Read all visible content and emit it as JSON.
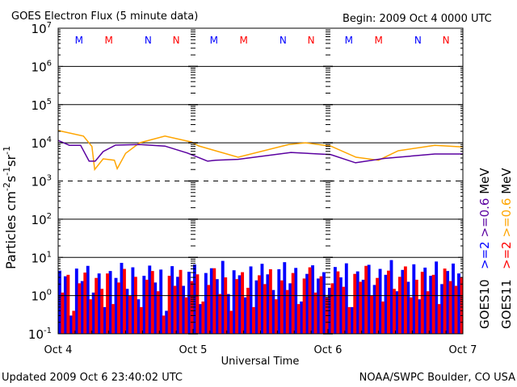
{
  "chart_data": {
    "type": "line",
    "title": "GOES Electron Flux (5 minute data)",
    "begin_label": "Begin: 2009 Oct 4 0000 UTC",
    "xlabel": "Universal Time",
    "ylabel": "Particles cm",
    "ylabel_parts": [
      "Particles cm",
      "-2",
      "s",
      "-1",
      "sr",
      "-1"
    ],
    "y_scale": "log",
    "ylim_exponents": [
      -1,
      7
    ],
    "y_tick_exponents": [
      7,
      6,
      5,
      4,
      3,
      2,
      1,
      0,
      -1
    ],
    "xlim_hours": [
      0,
      72
    ],
    "x_ticks": [
      {
        "hour": 0,
        "label": "Oct 4"
      },
      {
        "hour": 24,
        "label": "Oct 5"
      },
      {
        "hour": 48,
        "label": "Oct 6"
      },
      {
        "hour": 72,
        "label": "Oct 7"
      }
    ],
    "threshold_lines": [
      {
        "exponent": 6,
        "style": "solid"
      },
      {
        "exponent": 5,
        "style": "solid"
      },
      {
        "exponent": 4,
        "style": "solid"
      },
      {
        "exponent": 3,
        "style": "dashed"
      },
      {
        "exponent": 2,
        "style": "solid"
      },
      {
        "exponent": 1,
        "style": "solid"
      },
      {
        "exponent": 0,
        "style": "solid"
      }
    ],
    "markers": [
      {
        "day": 0,
        "hour": 3.7,
        "letter": "M",
        "color": "#0000ff"
      },
      {
        "day": 0,
        "hour": 9,
        "letter": "M",
        "color": "#ff0000"
      },
      {
        "day": 0,
        "hour": 16,
        "letter": "N",
        "color": "#0000ff"
      },
      {
        "day": 0,
        "hour": 21,
        "letter": "N",
        "color": "#ff0000"
      },
      {
        "day": 1,
        "hour": 3.7,
        "letter": "M",
        "color": "#0000ff"
      },
      {
        "day": 1,
        "hour": 9,
        "letter": "M",
        "color": "#ff0000"
      },
      {
        "day": 1,
        "hour": 16,
        "letter": "N",
        "color": "#0000ff"
      },
      {
        "day": 1,
        "hour": 21,
        "letter": "N",
        "color": "#ff0000"
      },
      {
        "day": 2,
        "hour": 3.7,
        "letter": "M",
        "color": "#0000ff"
      },
      {
        "day": 2,
        "hour": 9,
        "letter": "M",
        "color": "#ff0000"
      },
      {
        "day": 2,
        "hour": 16,
        "letter": "N",
        "color": "#0000ff"
      },
      {
        "day": 2,
        "hour": 21,
        "letter": "N",
        "color": "#ff0000"
      }
    ],
    "series": [
      {
        "name": "GOES11 >=0.6 MeV",
        "color": "#ffa500",
        "kind": "line",
        "hours": [
          0,
          4.5,
          6,
          6.5,
          8,
          10,
          10.5,
          12,
          14.5,
          19,
          23.7,
          25,
          32,
          41,
          44,
          48.5,
          53,
          57,
          60.5,
          67,
          72
        ],
        "values": [
          21000,
          15000,
          8000,
          2000,
          3800,
          3500,
          2100,
          5300,
          10000,
          15000,
          10500,
          8300,
          4200,
          9000,
          10000,
          8200,
          4200,
          3500,
          6200,
          8600,
          7800
        ]
      },
      {
        "name": "GOES10 >=0.6 MeV",
        "color": "#5a00a0",
        "kind": "line",
        "hours": [
          0,
          2,
          4,
          5.5,
          6.6,
          8,
          10.2,
          14.5,
          19,
          23,
          26.6,
          28,
          32,
          41.4,
          48.5,
          52.9,
          58,
          67,
          72
        ],
        "values": [
          11500,
          8600,
          8600,
          3300,
          3300,
          5900,
          8700,
          9000,
          8200,
          5400,
          3300,
          3500,
          3700,
          5600,
          4900,
          3000,
          3900,
          5100,
          5100
        ]
      },
      {
        "name": "GOES10 >=2 MeV",
        "color": "#0000ff",
        "kind": "bar",
        "step_hours": 1,
        "values": [
          4.5,
          3.2,
          0.3,
          5.1,
          2.4,
          6.0,
          1.2,
          3.8,
          0.5,
          4.4,
          2.9,
          7.2,
          1.5,
          5.5,
          0.8,
          3.3,
          6.1,
          2.2,
          4.8,
          0.4,
          5.9,
          3.1,
          1.8,
          4.2,
          6.5,
          0.6,
          3.9,
          5.2,
          2.7,
          8.1,
          1.1,
          4.6,
          3.4,
          0.9,
          5.8,
          2.5,
          6.8,
          3.6,
          1.4,
          4.9,
          7.5,
          2.1,
          5.3,
          0.7,
          3.7,
          6.2,
          2.8,
          4.1,
          1.6,
          5.6,
          3.0,
          7.0,
          0.5,
          4.3,
          2.6,
          6.4,
          1.9,
          5.0,
          3.5,
          8.5,
          1.3,
          4.7,
          2.3,
          6.6,
          0.8,
          5.4,
          3.3,
          7.8,
          2.0,
          4.4,
          6.9,
          3.8
        ]
      },
      {
        "name": "GOES11 >=2 MeV",
        "color": "#ff0000",
        "kind": "bar",
        "step_hours": 1,
        "values": [
          1.2,
          3.5,
          0.4,
          2.1,
          4.0,
          0.8,
          2.9,
          1.5,
          3.8,
          0.6,
          2.2,
          5.0,
          1.0,
          3.1,
          0.5,
          2.6,
          4.4,
          1.3,
          0.3,
          3.3,
          1.8,
          4.7,
          0.9,
          2.4,
          3.6,
          0.7,
          1.9,
          5.2,
          1.1,
          3.0,
          0.4,
          2.7,
          4.1,
          1.6,
          0.5,
          3.4,
          2.0,
          4.9,
          0.8,
          2.5,
          1.4,
          3.9,
          0.6,
          2.8,
          5.5,
          1.2,
          3.2,
          0.9,
          2.1,
          4.3,
          1.7,
          0.5,
          3.7,
          2.3,
          6.0,
          1.0,
          2.9,
          0.7,
          4.5,
          1.5,
          3.1,
          5.8,
          0.9,
          2.6,
          4.2,
          1.3,
          3.5,
          0.6,
          5.1,
          2.4,
          1.8,
          3.0
        ]
      }
    ],
    "legend": {
      "placement": "right",
      "col1": [
        {
          "text": ">=2",
          "color": "#0000ff"
        },
        {
          "text": ">=0.6",
          "color": "#5a00a0"
        },
        {
          "text": "MeV",
          "color": "#000000"
        }
      ],
      "col2": [
        {
          "text": ">=2",
          "color": "#ff0000"
        },
        {
          "text": ">=0.6",
          "color": "#ffa500"
        },
        {
          "text": "MeV",
          "color": "#000000"
        }
      ],
      "sat1": "GOES10",
      "sat2": "GOES11"
    }
  },
  "footer": {
    "updated": "Updated 2009 Oct  6 23:40:02 UTC",
    "credit": "NOAA/SWPC Boulder, CO USA"
  }
}
